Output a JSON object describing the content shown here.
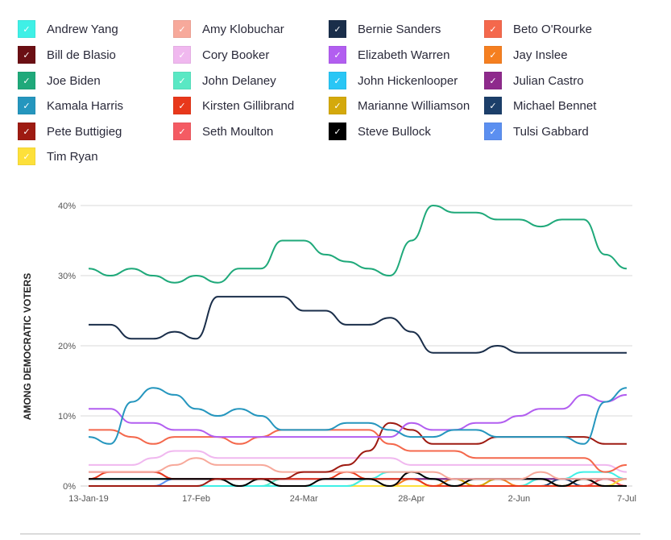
{
  "chart_data": {
    "type": "line",
    "ylabel": "AMONG DEMOCRATIC VOTERS",
    "ylim": [
      0,
      40
    ],
    "yticks": [
      "0%",
      "10%",
      "20%",
      "30%",
      "40%"
    ],
    "ytick_values": [
      0,
      10,
      20,
      30,
      40
    ],
    "xtick_labels": [
      "13-Jan-19",
      "17-Feb",
      "24-Mar",
      "28-Apr",
      "2-Jun",
      "7-Jul"
    ],
    "xtick_index": [
      0,
      5,
      10,
      15,
      20,
      25
    ],
    "n_points": 26,
    "grid": true,
    "legend_position": "top",
    "series": [
      {
        "name": "Andrew Yang",
        "color": "#3ff0e6",
        "values": [
          0,
          0,
          0,
          0,
          0,
          0,
          0,
          0,
          0,
          0,
          0,
          0,
          0,
          1,
          2,
          2,
          1,
          0,
          0,
          0,
          0,
          1,
          1,
          2,
          2,
          1
        ]
      },
      {
        "name": "Amy Klobuchar",
        "color": "#f7a99b",
        "values": [
          2,
          2,
          2,
          2,
          3,
          4,
          3,
          3,
          3,
          2,
          2,
          2,
          2,
          2,
          2,
          2,
          2,
          1,
          1,
          1,
          1,
          2,
          1,
          1,
          1,
          1
        ]
      },
      {
        "name": "Bernie Sanders",
        "color": "#1a2e4a",
        "values": [
          23,
          23,
          21,
          21,
          22,
          21,
          27,
          27,
          27,
          27,
          25,
          25,
          23,
          23,
          24,
          22,
          19,
          19,
          19,
          20,
          19,
          19,
          19,
          19,
          19,
          19
        ]
      },
      {
        "name": "Beto O'Rourke",
        "color": "#f4684c",
        "values": [
          8,
          8,
          7,
          6,
          7,
          7,
          7,
          6,
          7,
          8,
          8,
          8,
          8,
          8,
          6,
          5,
          5,
          5,
          4,
          4,
          4,
          4,
          4,
          4,
          2,
          3
        ]
      },
      {
        "name": "Bill de Blasio",
        "color": "#6b0f14",
        "values": [
          0,
          0,
          0,
          0,
          0,
          0,
          0,
          0,
          0,
          0,
          0,
          0,
          0,
          0,
          0,
          0,
          0,
          0,
          0,
          0,
          0,
          0,
          0,
          0,
          1,
          0
        ]
      },
      {
        "name": "Cory Booker",
        "color": "#f0b8ef",
        "values": [
          3,
          3,
          3,
          4,
          5,
          5,
          4,
          4,
          4,
          4,
          4,
          4,
          4,
          4,
          4,
          3,
          3,
          3,
          3,
          3,
          3,
          3,
          3,
          3,
          3,
          2
        ]
      },
      {
        "name": "Elizabeth Warren",
        "color": "#b25ef0",
        "values": [
          11,
          11,
          9,
          9,
          8,
          8,
          7,
          7,
          7,
          7,
          7,
          7,
          7,
          7,
          7,
          9,
          8,
          8,
          9,
          9,
          10,
          11,
          11,
          13,
          12,
          13
        ]
      },
      {
        "name": "Jay Inslee",
        "color": "#f57f20",
        "values": [
          0,
          0,
          0,
          0,
          0,
          0,
          0,
          0,
          0,
          0,
          0,
          0,
          0,
          0,
          0,
          1,
          0,
          1,
          0,
          1,
          0,
          1,
          0,
          1,
          0,
          1
        ]
      },
      {
        "name": "Joe Biden",
        "color": "#1fa97a",
        "values": [
          31,
          30,
          31,
          30,
          29,
          30,
          29,
          31,
          31,
          35,
          35,
          33,
          32,
          31,
          30,
          35,
          40,
          39,
          39,
          38,
          38,
          37,
          38,
          38,
          33,
          31
        ]
      },
      {
        "name": "John Delaney",
        "color": "#5ae8c4",
        "values": [
          1,
          1,
          1,
          1,
          1,
          1,
          1,
          0,
          0,
          1,
          1,
          1,
          1,
          1,
          1,
          1,
          1,
          1,
          1,
          1,
          1,
          1,
          1,
          1,
          1,
          1
        ]
      },
      {
        "name": "John Hickenlooper",
        "color": "#29c6f5",
        "values": [
          1,
          1,
          1,
          1,
          1,
          1,
          1,
          1,
          1,
          1,
          1,
          1,
          1,
          1,
          1,
          1,
          1,
          1,
          1,
          1,
          1,
          1,
          1,
          1,
          1,
          1
        ]
      },
      {
        "name": "Julian Castro",
        "color": "#8e2a8c",
        "values": [
          2,
          2,
          2,
          2,
          1,
          1,
          1,
          1,
          1,
          1,
          1,
          1,
          1,
          1,
          1,
          1,
          1,
          1,
          1,
          1,
          1,
          1,
          1,
          1,
          1,
          1
        ]
      },
      {
        "name": "Kamala Harris",
        "color": "#2596be",
        "values": [
          7,
          6,
          12,
          14,
          13,
          11,
          10,
          11,
          10,
          8,
          8,
          8,
          9,
          9,
          8,
          7,
          7,
          8,
          8,
          7,
          7,
          7,
          7,
          6,
          12,
          14
        ]
      },
      {
        "name": "Kirsten Gillibrand",
        "color": "#e8381b",
        "values": [
          1,
          2,
          2,
          2,
          1,
          1,
          1,
          1,
          1,
          1,
          1,
          1,
          2,
          1,
          1,
          1,
          0,
          0,
          0,
          0,
          0,
          0,
          0,
          0,
          0,
          0
        ]
      },
      {
        "name": "Marianne Williamson",
        "color": "#d4a90c",
        "values": [
          0,
          0,
          0,
          0,
          0,
          0,
          0,
          0,
          0,
          0,
          0,
          0,
          0,
          1,
          1,
          1,
          1,
          1,
          0,
          1,
          1,
          1,
          0,
          1,
          1,
          1
        ]
      },
      {
        "name": "Michael Bennet",
        "color": "#1c3f6a",
        "values": [
          0,
          0,
          0,
          0,
          0,
          0,
          0,
          0,
          0,
          0,
          0,
          0,
          0,
          0,
          0,
          0,
          0,
          0,
          0,
          0,
          0,
          0,
          1,
          0,
          0,
          0
        ]
      },
      {
        "name": "Pete Buttigieg",
        "color": "#9e1b12",
        "values": [
          0,
          0,
          0,
          0,
          0,
          0,
          1,
          1,
          1,
          1,
          2,
          2,
          3,
          5,
          9,
          8,
          6,
          6,
          6,
          7,
          7,
          7,
          7,
          7,
          6,
          6
        ]
      },
      {
        "name": "Seth Moulton",
        "color": "#f45b63",
        "values": [
          0,
          0,
          0,
          0,
          0,
          0,
          0,
          0,
          0,
          0,
          0,
          0,
          0,
          0,
          0,
          0,
          0,
          0,
          0,
          0,
          0,
          0,
          0,
          0,
          1,
          0
        ]
      },
      {
        "name": "Steve Bullock",
        "color": "#000000",
        "values": [
          1,
          1,
          1,
          1,
          1,
          1,
          1,
          0,
          1,
          0,
          0,
          1,
          1,
          1,
          0,
          2,
          1,
          0,
          1,
          1,
          1,
          1,
          0,
          1,
          0,
          0
        ]
      },
      {
        "name": "Tulsi Gabbard",
        "color": "#5b8ff0",
        "values": [
          0,
          0,
          0,
          0,
          1,
          1,
          1,
          1,
          1,
          1,
          1,
          1,
          1,
          1,
          1,
          1,
          1,
          1,
          1,
          1,
          1,
          1,
          1,
          1,
          1,
          1
        ]
      },
      {
        "name": "Tim Ryan",
        "color": "#fde03a",
        "values": [
          0,
          0,
          0,
          0,
          0,
          0,
          0,
          0,
          0,
          0,
          0,
          0,
          0,
          0,
          0,
          0,
          0,
          0,
          0,
          0,
          0,
          0,
          0,
          0,
          0,
          1
        ]
      }
    ]
  }
}
